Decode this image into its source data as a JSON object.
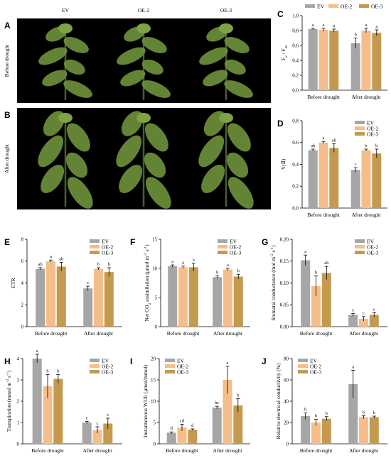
{
  "colors": {
    "EV": "#a6a6a6",
    "OE-2": "#f5bd8a",
    "OE-3": "#c49a4f",
    "background": "#ffffff",
    "photo_background": "#000000",
    "plant": "#6c8f3a",
    "axis": "#000000"
  },
  "photos": {
    "column_labels": [
      "EV",
      "OE-2",
      "OE-3"
    ],
    "panels": [
      {
        "letter": "A",
        "row_label": "Before drought"
      },
      {
        "letter": "B",
        "row_label": "After drought"
      }
    ]
  },
  "chart_data": [
    {
      "letter": "C",
      "type": "bar",
      "ylabel": "Fv / Fm",
      "categories": [
        "Before drought",
        "After drought"
      ],
      "ylim": [
        0,
        1.0
      ],
      "yticks": [
        0.0,
        0.2,
        0.4,
        0.6,
        0.8,
        1.0
      ],
      "tick_labels": [
        "0.0",
        "0.2",
        "0.4",
        "0.6",
        "0.8",
        "1.0"
      ],
      "legend_position": "top",
      "legend_layout": "horizontal",
      "series": [
        {
          "name": "EV",
          "values": [
            0.82,
            0.63
          ],
          "errors": [
            0.01,
            0.07
          ],
          "letters": [
            "a",
            "b"
          ]
        },
        {
          "name": "OE-2",
          "values": [
            0.81,
            0.8
          ],
          "errors": [
            0.02,
            0.03
          ],
          "letters": [
            "a",
            "a"
          ]
        },
        {
          "name": "OE-3",
          "values": [
            0.8,
            0.77
          ],
          "errors": [
            0.02,
            0.04
          ],
          "letters": [
            "a",
            "a"
          ]
        }
      ]
    },
    {
      "letter": "D",
      "type": "bar",
      "ylabel": "Y(Ⅱ)",
      "categories": [
        "Before drought",
        "After drought"
      ],
      "ylim": [
        0,
        0.8
      ],
      "yticks": [
        0.0,
        0.2,
        0.4,
        0.6,
        0.8
      ],
      "tick_labels": [
        "0.0",
        "0.2",
        "0.4",
        "0.6",
        "0.8"
      ],
      "legend_position": "top-right",
      "legend_layout": "vertical",
      "series": [
        {
          "name": "EV",
          "values": [
            0.53,
            0.35
          ],
          "errors": [
            0.01,
            0.02
          ],
          "letters": [
            "ab",
            "c"
          ]
        },
        {
          "name": "OE-2",
          "values": [
            0.6,
            0.53
          ],
          "errors": [
            0.01,
            0.01
          ],
          "letters": [
            "a",
            "b"
          ]
        },
        {
          "name": "OE-3",
          "values": [
            0.55,
            0.5
          ],
          "errors": [
            0.04,
            0.04
          ],
          "letters": [
            "ab",
            "b"
          ]
        }
      ]
    },
    {
      "letter": "E",
      "type": "bar",
      "ylabel": "ETR",
      "categories": [
        "Before drought",
        "After drought"
      ],
      "ylim": [
        0,
        8
      ],
      "yticks": [
        0,
        2,
        4,
        6,
        8
      ],
      "tick_labels": [
        "0",
        "2",
        "4",
        "6",
        "8"
      ],
      "legend_position": "top-right",
      "legend_layout": "vertical",
      "series": [
        {
          "name": "EV",
          "values": [
            5.3,
            3.5
          ],
          "errors": [
            0.1,
            0.2
          ],
          "letters": [
            "ab",
            "c"
          ]
        },
        {
          "name": "OE-2",
          "values": [
            6.0,
            5.3
          ],
          "errors": [
            0.1,
            0.1
          ],
          "letters": [
            "a",
            "b"
          ]
        },
        {
          "name": "OE-3",
          "values": [
            5.5,
            5.0
          ],
          "errors": [
            0.4,
            0.4
          ],
          "letters": [
            "ab",
            "b"
          ]
        }
      ]
    },
    {
      "letter": "F",
      "type": "bar",
      "ylabel": "Net CO2 assimilation (μmol m-2 s-1)",
      "ylabel_parts": [
        "Net CO",
        "2",
        " assimilation (μmol m",
        "-2",
        " s",
        "-1",
        ")"
      ],
      "categories": [
        "Before drought",
        "After drought"
      ],
      "ylim": [
        0,
        15
      ],
      "yticks": [
        0,
        5,
        10,
        15
      ],
      "tick_labels": [
        "0",
        "5",
        "10",
        "15"
      ],
      "legend_position": "top-right",
      "legend_layout": "vertical",
      "series": [
        {
          "name": "EV",
          "values": [
            10.4,
            8.5
          ],
          "errors": [
            0.2,
            0.2
          ],
          "letters": [
            "a",
            "b"
          ]
        },
        {
          "name": "OE-2",
          "values": [
            10.2,
            9.8
          ],
          "errors": [
            0.2,
            0.2
          ],
          "letters": [
            "a",
            "a"
          ]
        },
        {
          "name": "OE-3",
          "values": [
            10.2,
            8.6
          ],
          "errors": [
            0.7,
            0.4
          ],
          "letters": [
            "a",
            "b"
          ]
        }
      ]
    },
    {
      "letter": "G",
      "type": "bar",
      "ylabel": "Stomatal conductance (mol m-2 s-1)",
      "ylabel_parts": [
        "Stomatal conductance (mol m",
        "-2",
        " s",
        "-1",
        ")"
      ],
      "categories": [
        "Before drought",
        "After drought"
      ],
      "ylim": [
        0,
        0.2
      ],
      "yticks": [
        0.0,
        0.05,
        0.1,
        0.15,
        0.2
      ],
      "tick_labels": [
        "0.00",
        "0.05",
        "0.10",
        "0.15",
        "0.20"
      ],
      "legend_position": "top-right",
      "legend_layout": "vertical",
      "series": [
        {
          "name": "EV",
          "values": [
            0.152,
            0.027
          ],
          "errors": [
            0.012,
            0.003
          ],
          "letters": [
            "a",
            "c"
          ]
        },
        {
          "name": "OE-2",
          "values": [
            0.093,
            0.018
          ],
          "errors": [
            0.023,
            0.005
          ],
          "letters": [
            "b",
            "c"
          ]
        },
        {
          "name": "OE-3",
          "values": [
            0.123,
            0.027
          ],
          "errors": [
            0.015,
            0.005
          ],
          "letters": [
            "ab",
            "c"
          ]
        }
      ]
    },
    {
      "letter": "H",
      "type": "bar",
      "ylabel": "Transpiration (mmol m-2 s-1)",
      "ylabel_parts": [
        "Transpiration (mmol m",
        "-2",
        " s",
        "-1",
        ")"
      ],
      "categories": [
        "Before drought",
        "After drought"
      ],
      "ylim": [
        0,
        4
      ],
      "yticks": [
        0,
        1,
        2,
        3,
        4
      ],
      "tick_labels": [
        "0",
        "1",
        "2",
        "3",
        "4"
      ],
      "legend_position": "top-right",
      "legend_layout": "vertical",
      "series": [
        {
          "name": "EV",
          "values": [
            4.0,
            1.0
          ],
          "errors": [
            0.2,
            0.05
          ],
          "letters": [
            "a",
            "c"
          ]
        },
        {
          "name": "OE-2",
          "values": [
            2.7,
            0.65
          ],
          "errors": [
            0.55,
            0.15
          ],
          "letters": [
            "b",
            "c"
          ]
        },
        {
          "name": "OE-3",
          "values": [
            3.05,
            0.95
          ],
          "errors": [
            0.2,
            0.25
          ],
          "letters": [
            "b",
            "c"
          ]
        }
      ]
    },
    {
      "letter": "I",
      "type": "bar",
      "ylabel": "Instantaneous WUE (μmol/mmol)",
      "categories": [
        "Before drought",
        "After drought"
      ],
      "ylim": [
        0,
        20
      ],
      "yticks": [
        0,
        5,
        10,
        15,
        20
      ],
      "tick_labels": [
        "0",
        "5",
        "10",
        "15",
        "20"
      ],
      "legend_position": "top-left",
      "legend_layout": "vertical",
      "series": [
        {
          "name": "EV",
          "values": [
            2.6,
            8.5
          ],
          "errors": [
            0.2,
            0.3
          ],
          "letters": [
            "d",
            "bc"
          ]
        },
        {
          "name": "OE-2",
          "values": [
            3.8,
            15.0
          ],
          "errors": [
            0.8,
            3.2
          ],
          "letters": [
            "cd",
            "a"
          ]
        },
        {
          "name": "OE-3",
          "values": [
            3.3,
            9.0
          ],
          "errors": [
            0.2,
            1.6
          ],
          "letters": [
            "d",
            "b"
          ]
        }
      ]
    },
    {
      "letter": "J",
      "type": "bar",
      "ylabel": "Relative electrical conductivity (%)",
      "categories": [
        "Before drought",
        "After drought"
      ],
      "ylim": [
        0,
        80
      ],
      "yticks": [
        0,
        20,
        40,
        60,
        80
      ],
      "tick_labels": [
        "0",
        "20",
        "40",
        "60",
        "80"
      ],
      "legend_position": "top-left",
      "legend_layout": "vertical",
      "series": [
        {
          "name": "EV",
          "values": [
            26,
            56
          ],
          "errors": [
            3,
            13
          ],
          "letters": [
            "b",
            "a"
          ]
        },
        {
          "name": "OE-2",
          "values": [
            20,
            25
          ],
          "errors": [
            3,
            1.5
          ],
          "letters": [
            "b",
            "b"
          ]
        },
        {
          "name": "OE-3",
          "values": [
            23.5,
            25
          ],
          "errors": [
            2,
            1
          ],
          "letters": [
            "b",
            "b"
          ]
        }
      ]
    }
  ]
}
